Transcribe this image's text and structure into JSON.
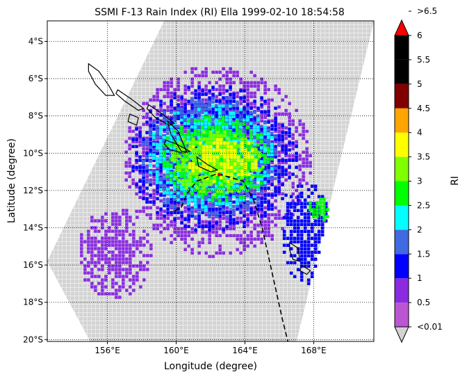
{
  "figure": {
    "title": "SSMI F-13 Rain Index (RI) Ella 1999-02-10 18:54:58",
    "xlabel": "Longitude (degree)",
    "ylabel": "Latitude (degree)",
    "colorbar_label": "RI"
  },
  "map": {
    "lon_range": [
      152.5,
      171.5
    ],
    "lat_range": [
      -20.1,
      -2.9
    ],
    "lon_ticks": [
      {
        "value": 156,
        "label": "156°E"
      },
      {
        "value": 160,
        "label": "160°E"
      },
      {
        "value": 164,
        "label": "164°E"
      },
      {
        "value": 168,
        "label": "168°E"
      }
    ],
    "lat_ticks": [
      {
        "value": -4,
        "label": "4°S"
      },
      {
        "value": -6,
        "label": "6°S"
      },
      {
        "value": -8,
        "label": "8°S"
      },
      {
        "value": -10,
        "label": "10°S"
      },
      {
        "value": -12,
        "label": "12°S"
      },
      {
        "value": -14,
        "label": "14°S"
      },
      {
        "value": -16,
        "label": "16°S"
      },
      {
        "value": -18,
        "label": "18°S"
      },
      {
        "value": -20,
        "label": "20°S"
      }
    ],
    "gridlines": true,
    "swath_corners": [
      [
        159.3,
        -2.9
      ],
      [
        171.5,
        -2.9
      ],
      [
        167.0,
        -20.1
      ],
      [
        155.0,
        -20.1
      ],
      [
        152.5,
        -15.8
      ]
    ],
    "rain_regions": [
      {
        "lon": [
          156.8,
          167.8
        ],
        "lat": [
          -15.5,
          -5.2
        ],
        "class": 1
      },
      {
        "lon": [
          154.2,
          158.5
        ],
        "lat": [
          -17.8,
          -12.8
        ],
        "class": 1
      },
      {
        "lon": [
          157.2,
          167.0
        ],
        "lat": [
          -14.2,
          -6.2
        ],
        "class": 2
      },
      {
        "lon": [
          166.0,
          169.0
        ],
        "lat": [
          -17.0,
          -11.5
        ],
        "class": 2
      },
      {
        "lon": [
          157.8,
          166.0
        ],
        "lat": [
          -13.5,
          -6.8
        ],
        "class": 3
      },
      {
        "lon": [
          158.2,
          165.8
        ],
        "lat": [
          -13.0,
          -7.2
        ],
        "class": 4
      },
      {
        "lon": [
          159.0,
          165.5
        ],
        "lat": [
          -12.6,
          -7.8
        ],
        "class": 5
      },
      {
        "lon": [
          159.5,
          165.0
        ],
        "lat": [
          -12.2,
          -8.6
        ],
        "class": 6
      },
      {
        "lon": [
          160.5,
          164.8
        ],
        "lat": [
          -11.5,
          -9.0
        ],
        "class": 7
      },
      {
        "lon": [
          167.5,
          168.8
        ],
        "lat": [
          -13.8,
          -12.2
        ],
        "class": 5
      }
    ],
    "islands": [
      [
        [
          154.9,
          -5.2
        ],
        [
          155.5,
          -5.6
        ],
        [
          156.1,
          -6.4
        ],
        [
          156.4,
          -6.9
        ],
        [
          155.9,
          -6.9
        ],
        [
          155.3,
          -6.3
        ],
        [
          154.9,
          -5.6
        ]
      ],
      [
        [
          156.6,
          -6.6
        ],
        [
          157.4,
          -7.1
        ],
        [
          158.1,
          -7.6
        ],
        [
          157.8,
          -7.7
        ],
        [
          157.0,
          -7.2
        ],
        [
          156.5,
          -6.8
        ]
      ],
      [
        [
          157.3,
          -7.9
        ],
        [
          157.8,
          -8.1
        ],
        [
          157.7,
          -8.5
        ],
        [
          157.2,
          -8.3
        ]
      ],
      [
        [
          158.4,
          -7.4
        ],
        [
          159.2,
          -7.9
        ],
        [
          159.9,
          -8.4
        ],
        [
          159.6,
          -8.5
        ],
        [
          158.8,
          -8.1
        ],
        [
          158.3,
          -7.6
        ]
      ],
      [
        [
          159.5,
          -8.3
        ],
        [
          160.1,
          -8.8
        ],
        [
          160.6,
          -9.9
        ],
        [
          160.3,
          -9.9
        ],
        [
          159.7,
          -9.0
        ]
      ],
      [
        [
          159.4,
          -9.3
        ],
        [
          160.0,
          -9.5
        ],
        [
          160.8,
          -9.9
        ],
        [
          160.4,
          -10.0
        ],
        [
          159.6,
          -9.8
        ],
        [
          159.3,
          -9.5
        ]
      ],
      [
        [
          161.2,
          -10.2
        ],
        [
          161.8,
          -10.6
        ],
        [
          162.4,
          -10.9
        ],
        [
          162.0,
          -11.0
        ],
        [
          161.3,
          -10.7
        ]
      ],
      [
        [
          166.6,
          -14.8
        ],
        [
          167.1,
          -15.1
        ],
        [
          167.2,
          -15.8
        ],
        [
          166.8,
          -15.7
        ],
        [
          166.6,
          -15.2
        ]
      ],
      [
        [
          167.3,
          -16.0
        ],
        [
          167.8,
          -16.3
        ],
        [
          167.6,
          -16.5
        ],
        [
          167.2,
          -16.3
        ]
      ]
    ],
    "track": [
      [
        159.9,
        -13.1
      ],
      [
        160.3,
        -12.9
      ],
      [
        160.6,
        -12.2
      ],
      [
        161.2,
        -11.5
      ],
      [
        162.4,
        -11.1
      ],
      [
        163.9,
        -11.5
      ],
      [
        164.5,
        -12.5
      ],
      [
        165.0,
        -14.0
      ],
      [
        165.6,
        -16.5
      ],
      [
        166.2,
        -19.0
      ],
      [
        166.5,
        -20.1
      ]
    ],
    "storm_center": {
      "lon": 162.5,
      "lat": -11.15
    }
  },
  "colorbar": {
    "levels": [
      "<0.01",
      "0.5",
      "1",
      "1.5",
      "2",
      "2.5",
      "3",
      "3.5",
      "4",
      "4.5",
      "5",
      "5.5",
      "6",
      ">6.5"
    ],
    "colors": [
      "#ba55d3",
      "#8a2be2",
      "#0000ff",
      "#4169e1",
      "#00ffff",
      "#00ff00",
      "#7fff00",
      "#ffff00",
      "#ffa500",
      "#800000",
      "#000000",
      "#000000"
    ],
    "extend_low_color": "#d3d3d3",
    "extend_high_color": "#ff0000"
  }
}
